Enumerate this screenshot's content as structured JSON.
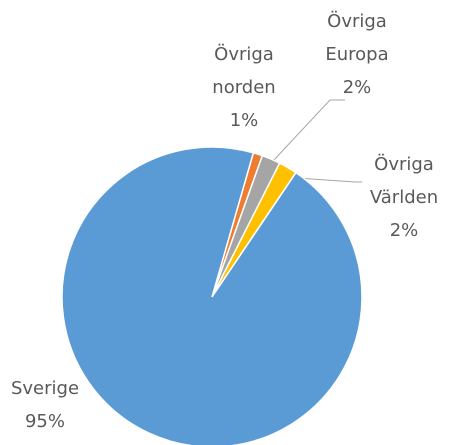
{
  "chart_data": {
    "type": "pie",
    "categories": [
      "Övriga norden",
      "Övriga Europa",
      "Övriga Världen",
      "Sverige"
    ],
    "values": [
      1,
      2,
      2,
      95
    ],
    "value_labels": [
      "1%",
      "2%",
      "2%",
      "95%"
    ],
    "colors": [
      "#ed7d31",
      "#a5a5a5",
      "#ffc000",
      "#5b9bd5"
    ]
  }
}
